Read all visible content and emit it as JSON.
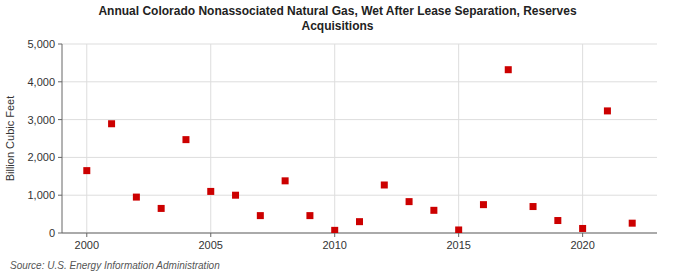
{
  "chart_data": {
    "type": "scatter",
    "title": "Annual Colorado Nonassociated Natural Gas, Wet After Lease Separation, Reserves\nAcquisitions",
    "ylabel": "Billion Cubic Feet",
    "source": "Source: U.S. Energy Information Administration",
    "x": [
      2000,
      2001,
      2002,
      2003,
      2004,
      2005,
      2006,
      2007,
      2008,
      2009,
      2010,
      2011,
      2012,
      2013,
      2014,
      2015,
      2016,
      2017,
      2018,
      2019,
      2020,
      2021,
      2022
    ],
    "values": [
      1650,
      2890,
      950,
      650,
      2470,
      1100,
      1000,
      460,
      1380,
      460,
      70,
      300,
      1270,
      830,
      600,
      80,
      750,
      4320,
      700,
      330,
      120,
      3230,
      260
    ],
    "color": "#cc0000",
    "marker": "square",
    "xlim": [
      1999,
      2023
    ],
    "ylim": [
      0,
      5000
    ],
    "xticks": [
      2000,
      2005,
      2010,
      2015,
      2020
    ],
    "yticks": [
      0,
      {
        "value": 1000,
        "label": "1,000"
      },
      {
        "value": 2000,
        "label": "2,000"
      },
      {
        "value": 3000,
        "label": "3,000"
      },
      {
        "value": 4000,
        "label": "4,000"
      },
      {
        "value": 5000,
        "label": "5,000"
      }
    ],
    "grid": true
  }
}
